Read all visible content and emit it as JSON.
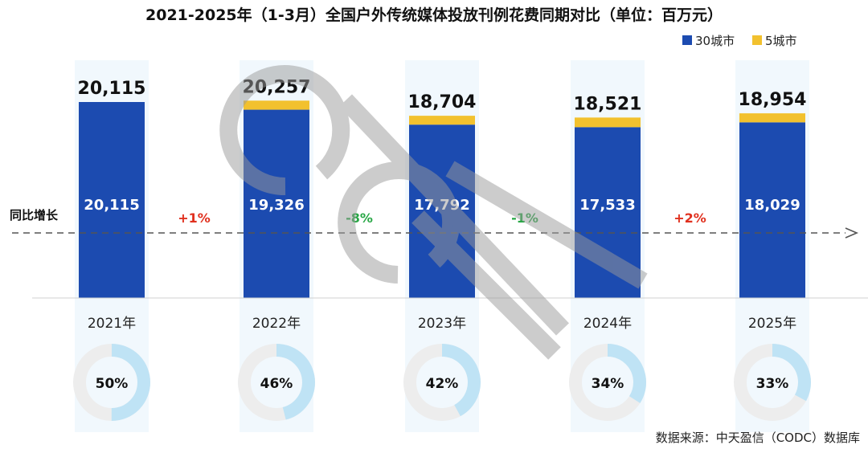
{
  "chart_data": {
    "type": "bar",
    "title": "2021-2025年（1-3月）全国户外传统媒体投放刊例花费同期对比（单位：百万元）",
    "categories": [
      "2021年",
      "2022年",
      "2023年",
      "2024年",
      "2025年"
    ],
    "series": [
      {
        "name": "30城市",
        "values": [
          20115,
          19326,
          17792,
          17533,
          18029
        ]
      },
      {
        "name": "5城市",
        "values": [
          0,
          931,
          912,
          988,
          925
        ]
      }
    ],
    "total_labels": [
      "20,115",
      "20,257",
      "18,704",
      "18,521",
      "18,954"
    ],
    "inner_labels": [
      "20,115",
      "19,326",
      "17,792",
      "17,533",
      "18,029"
    ],
    "growth": {
      "label": "同比增长",
      "values": [
        "+1%",
        "-8%",
        "-1%",
        "+2%"
      ]
    },
    "donut_values": [
      50,
      46,
      42,
      34,
      33
    ],
    "donut_labels": [
      "50%",
      "46%",
      "42%",
      "34%",
      "33%"
    ],
    "legend_position": "top-right",
    "ylim": [
      0,
      20500
    ]
  },
  "source_text": "数据来源：中天盈信（CODC）数据库",
  "colors": {
    "series_30": "#1c4bb0",
    "series_5": "#f2c12e",
    "positive": "#e0301e",
    "negative": "#28a745",
    "donut_fill": "#bfe3f5",
    "donut_track": "#ededed",
    "panel": "#f1f8fd"
  }
}
